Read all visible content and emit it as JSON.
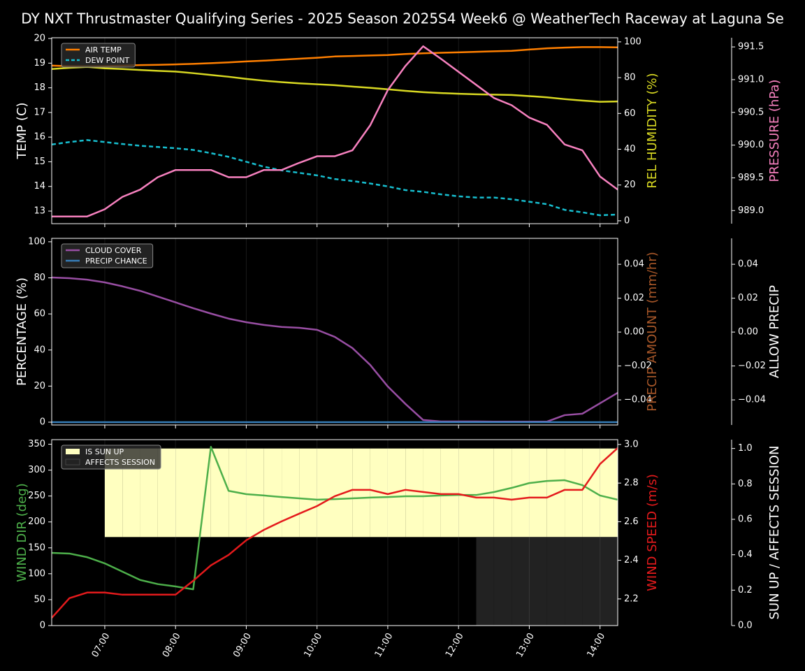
{
  "chart_data": [
    {
      "type": "line",
      "title": "DY NXT Thrustmaster Qualifying Series - 2025 Season 2025S4 Week6 @ WeatherTech Raceway at Laguna Se",
      "x": [
        6.25,
        6.5,
        6.75,
        7,
        7.25,
        7.5,
        7.75,
        8,
        8.25,
        8.5,
        8.75,
        9,
        9.25,
        9.5,
        9.75,
        10,
        10.25,
        10.5,
        10.75,
        11,
        11.25,
        11.5,
        11.75,
        12,
        12.25,
        12.5,
        12.75,
        13,
        13.25,
        13.5,
        13.75,
        14,
        14.25
      ],
      "xlim": [
        6.25,
        14.25
      ],
      "xticks": [
        7,
        8,
        9,
        10,
        11,
        12,
        13,
        14
      ],
      "grid": "x",
      "legend": "upper left",
      "ylabel": "TEMP (C)",
      "ylim": [
        12.49,
        20.03
      ],
      "yticks": [
        13,
        14,
        15,
        16,
        17,
        18,
        19,
        20
      ],
      "y2label": "REL HUMIDITY (%)",
      "y2label_color": "#d8d822",
      "y2lim": [
        -1.6,
        102.3
      ],
      "y2ticks": [
        0,
        20,
        40,
        60,
        80,
        100
      ],
      "y3label": "PRESSURE (hPa)",
      "y3label_color": "#f781bf",
      "y3lim": [
        988.8,
        991.64
      ],
      "y3ticks": [
        {
          "value": 989,
          "label": "989.0"
        },
        989.5,
        {
          "value": 990,
          "label": "990.0"
        },
        990.5,
        {
          "value": 991,
          "label": "991.0"
        },
        991.5
      ],
      "series": [
        {
          "name": "AIR TEMP",
          "color": "#ff7f00",
          "axis": "y",
          "values": [
            18.9,
            18.88,
            18.87,
            18.88,
            18.9,
            18.92,
            18.93,
            18.95,
            18.97,
            19.0,
            19.03,
            19.07,
            19.1,
            19.14,
            19.18,
            19.22,
            19.27,
            19.29,
            19.31,
            19.33,
            19.37,
            19.4,
            19.42,
            19.44,
            19.46,
            19.48,
            19.5,
            19.55,
            19.6,
            19.63,
            19.65,
            19.65,
            19.64
          ]
        },
        {
          "name": "DEW POINT",
          "color": "#17becf",
          "axis": "y",
          "dash": "dashed",
          "values": [
            15.7,
            15.8,
            15.88,
            15.8,
            15.72,
            15.65,
            15.6,
            15.55,
            15.48,
            15.35,
            15.2,
            15.0,
            14.8,
            14.65,
            14.55,
            14.45,
            14.3,
            14.22,
            14.12,
            14.0,
            13.85,
            13.78,
            13.68,
            13.6,
            13.55,
            13.55,
            13.48,
            13.38,
            13.28,
            13.05,
            12.95,
            12.83,
            12.86
          ]
        },
        {
          "color": "#d8d822",
          "axis": "y2",
          "values": [
            84.8,
            85.5,
            86.0,
            85.2,
            84.8,
            84.3,
            83.8,
            83.4,
            82.5,
            81.5,
            80.5,
            79.3,
            78.3,
            77.5,
            76.8,
            76.3,
            75.8,
            75.0,
            74.3,
            73.5,
            72.6,
            71.9,
            71.4,
            71.0,
            70.7,
            70.5,
            70.3,
            69.7,
            69.0,
            68.0,
            67.2,
            66.5,
            66.7
          ]
        },
        {
          "color": "#f781bf",
          "axis": "y3",
          "values": [
            988.91,
            988.91,
            988.91,
            989.02,
            989.21,
            989.32,
            989.51,
            989.62,
            989.62,
            989.62,
            989.51,
            989.51,
            989.62,
            989.62,
            989.73,
            989.83,
            989.83,
            989.92,
            990.3,
            990.84,
            991.21,
            991.51,
            991.32,
            991.12,
            990.92,
            990.72,
            990.61,
            990.42,
            990.31,
            990.01,
            989.92,
            989.52,
            989.32
          ]
        }
      ]
    },
    {
      "type": "line",
      "x": [
        6.25,
        6.5,
        6.75,
        7,
        7.25,
        7.5,
        7.75,
        8,
        8.25,
        8.5,
        8.75,
        9,
        9.25,
        9.5,
        9.75,
        10,
        10.25,
        10.5,
        10.75,
        11,
        11.25,
        11.5,
        11.75,
        12,
        12.25,
        12.5,
        12.75,
        13,
        13.25,
        13.5,
        13.75,
        14,
        14.25
      ],
      "xlim": [
        6.25,
        14.25
      ],
      "xticks": [
        7,
        8,
        9,
        10,
        11,
        12,
        13,
        14
      ],
      "grid": "x",
      "legend": "upper left",
      "ylabel": "PERCENTAGE (%)",
      "ylim": [
        -1.55,
        101.9
      ],
      "yticks": [
        0,
        20,
        40,
        60,
        80,
        100
      ],
      "y2label": "PRECIP AMOUNT (mm/hr)",
      "y2label_color": "#a65628",
      "y2lim": [
        -0.0548,
        0.0553
      ],
      "y2ticks": [
        {
          "value": -0.04,
          "label": "−0.04"
        },
        {
          "value": -0.02,
          "label": "−0.02"
        },
        {
          "value": 0,
          "label": "0.00"
        },
        0.02,
        0.04
      ],
      "y3label": "ALLOW PRECIP",
      "y3lim": [
        -0.0548,
        0.0553
      ],
      "y3ticks": [
        {
          "value": -0.04,
          "label": "−0.04"
        },
        {
          "value": -0.02,
          "label": "−0.02"
        },
        {
          "value": 0,
          "label": "0.00"
        },
        0.02,
        0.04
      ],
      "series": [
        {
          "name": "CLOUD COVER",
          "color": "#984ea3",
          "axis": "y",
          "values": [
            80.2,
            79.8,
            79.0,
            77.5,
            75.3,
            72.8,
            69.6,
            66.4,
            63.2,
            60.2,
            57.4,
            55.4,
            53.9,
            52.8,
            52.3,
            51.2,
            47.3,
            41.1,
            31.8,
            19.8,
            10.1,
            1.2,
            0.4,
            0.4,
            0.4,
            0.3,
            0.3,
            0.3,
            0.3,
            3.9,
            4.7,
            10.5,
            16.3
          ]
        },
        {
          "name": "PRECIP CHANCE",
          "color": "#377eb8",
          "axis": "y",
          "values": [
            0,
            0,
            0,
            0,
            0,
            0,
            0,
            0,
            0,
            0,
            0,
            0,
            0,
            0,
            0,
            0,
            0,
            0,
            0,
            0,
            0,
            0,
            0,
            0,
            0,
            0,
            0,
            0,
            0,
            0,
            0,
            0,
            0
          ]
        }
      ]
    },
    {
      "type": "line",
      "x": [
        6.25,
        6.5,
        6.75,
        7,
        7.25,
        7.5,
        7.75,
        8,
        8.25,
        8.5,
        8.75,
        9,
        9.25,
        9.5,
        9.75,
        10,
        10.25,
        10.5,
        10.75,
        11,
        11.25,
        11.5,
        11.75,
        12,
        12.25,
        12.5,
        12.75,
        13,
        13.25,
        13.5,
        13.75,
        14,
        14.25
      ],
      "xlim": [
        6.25,
        14.25
      ],
      "grid": "x",
      "legend": "upper left",
      "xticks": [
        {
          "value": 7,
          "label": "07:00"
        },
        {
          "value": 8,
          "label": "08:00"
        },
        {
          "value": 9,
          "label": "09:00"
        },
        {
          "value": 10,
          "label": "10:00"
        },
        {
          "value": 11,
          "label": "11:00"
        },
        {
          "value": 12,
          "label": "12:00"
        },
        {
          "value": 13,
          "label": "13:00"
        },
        {
          "value": 14,
          "label": "14:00"
        }
      ],
      "ylabel": "WIND DIR (deg)",
      "ylabel_color": "#4daf4a",
      "ylim": [
        0,
        358.8
      ],
      "yticks": [
        0,
        50,
        100,
        150,
        200,
        250,
        300,
        350
      ],
      "y2label": "WIND SPEED (m/s)",
      "y2label_color": "#e41a1c",
      "y2lim": [
        2.062,
        3.025
      ],
      "y2ticks": [
        2.2,
        2.4,
        2.6,
        2.8,
        {
          "value": 3,
          "label": "3.0"
        }
      ],
      "y3label": "SUN UP / AFFECTS SESSION",
      "y3lim": [
        0,
        1.05
      ],
      "y3ticks": [
        {
          "value": 0,
          "label": "0.0"
        },
        0.2,
        0.4,
        0.6,
        0.8,
        {
          "value": 1,
          "label": "1.0"
        }
      ],
      "series": [
        {
          "name": "IS SUN UP",
          "kind": "band",
          "color": "#ffffc0",
          "axis": "y3",
          "values": [
            0,
            0,
            0,
            1,
            1,
            1,
            1,
            1,
            1,
            1,
            1,
            1,
            1,
            1,
            1,
            1,
            1,
            1,
            1,
            1,
            1,
            1,
            1,
            1,
            1,
            1,
            1,
            1,
            1,
            1,
            1,
            1,
            1
          ]
        },
        {
          "name": "AFFECTS SESSION",
          "kind": "band",
          "color": "#222222",
          "axis": "y3",
          "values": [
            0,
            0,
            0,
            0,
            0,
            0,
            0,
            0,
            0,
            0,
            0,
            0,
            0,
            0,
            0,
            0,
            0,
            0,
            0,
            0,
            0,
            0,
            0,
            0,
            1,
            1,
            1,
            1,
            1,
            1,
            1,
            1,
            1
          ]
        },
        {
          "color": "#4daf4a",
          "axis": "y",
          "values": [
            140.3,
            139,
            132,
            120,
            104,
            88,
            80,
            75.5,
            70,
            345,
            260,
            253.6,
            251,
            248,
            245.5,
            243,
            244,
            245.5,
            247,
            248,
            249.5,
            249.5,
            251,
            252,
            252,
            257.6,
            265.7,
            275,
            279,
            280.5,
            271,
            251,
            243
          ]
        },
        {
          "color": "#e41a1c",
          "axis": "y2",
          "values": [
            2.102,
            2.204,
            2.233,
            2.233,
            2.222,
            2.222,
            2.222,
            2.222,
            2.294,
            2.374,
            2.428,
            2.504,
            2.558,
            2.602,
            2.642,
            2.681,
            2.732,
            2.765,
            2.765,
            2.743,
            2.765,
            2.754,
            2.743,
            2.743,
            2.725,
            2.725,
            2.714,
            2.725,
            2.725,
            2.765,
            2.765,
            2.899,
            2.982
          ]
        }
      ]
    }
  ]
}
